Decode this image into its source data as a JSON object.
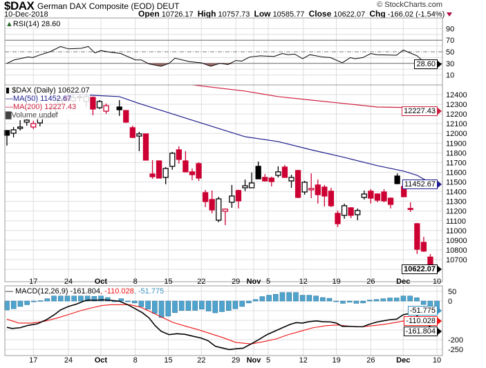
{
  "header": {
    "symbol": "$DAX",
    "name": "German DAX Composite (EOD)",
    "exchange": "DEUT",
    "date": "10-Dec-2018",
    "open_label": "Open",
    "open": "10726.17",
    "high_label": "High",
    "high": "10757.73",
    "low_label": "Low",
    "low": "10585.77",
    "close_label": "Close",
    "close": "10622.07",
    "chg_label": "Chg",
    "chg": "-166.02 (-1.54%)",
    "copyright": "© StockCharts.com"
  },
  "colors": {
    "up": "#000000",
    "down": "#cc0033",
    "ma50": "#1c1c8c",
    "ma200": "#cc1f3f",
    "macd": "#000000",
    "signal": "#ee1111",
    "histogram": "#4fa3cc",
    "grid": "#dddddd"
  },
  "chart_data": {
    "type": "candlestick",
    "x_labels": [
      {
        "slot": 4,
        "label": "17",
        "bold": false
      },
      {
        "slot": 9.3,
        "label": "24",
        "bold": false
      },
      {
        "slot": 14.2,
        "label": "Oct",
        "bold": true
      },
      {
        "slot": 19.4,
        "label": "8",
        "bold": false
      },
      {
        "slot": 24.4,
        "label": "15",
        "bold": false
      },
      {
        "slot": 29.4,
        "label": "22",
        "bold": false
      },
      {
        "slot": 34.6,
        "label": "29",
        "bold": false
      },
      {
        "slot": 37.3,
        "label": "Nov",
        "bold": true
      },
      {
        "slot": 39.5,
        "label": "5",
        "bold": false
      },
      {
        "slot": 44.8,
        "label": "12",
        "bold": false
      },
      {
        "slot": 49.8,
        "label": "19",
        "bold": false
      },
      {
        "slot": 55,
        "label": "26",
        "bold": false
      },
      {
        "slot": 59.9,
        "label": "Dec",
        "bold": true
      },
      {
        "slot": 65,
        "label": "10",
        "bold": false
      }
    ],
    "rsi": {
      "label": "RSI(14) 28.60",
      "last": "28.60",
      "ylim": [
        0,
        100
      ],
      "ticks": [
        90,
        70,
        50,
        30,
        10
      ],
      "overbought": 70,
      "oversold": 30,
      "midline": 50,
      "points": [
        [
          0,
          30
        ],
        [
          1.1,
          36
        ],
        [
          3.2,
          41
        ],
        [
          3.9,
          40
        ],
        [
          5.1,
          45
        ],
        [
          6.5,
          50
        ],
        [
          8.1,
          59
        ],
        [
          9.3,
          55
        ],
        [
          11.2,
          56
        ],
        [
          12.3,
          59
        ],
        [
          13.3,
          48
        ],
        [
          14.2,
          52
        ],
        [
          15.8,
          49
        ],
        [
          17.2,
          47
        ],
        [
          19.4,
          36
        ],
        [
          20.3,
          36
        ],
        [
          21.5,
          29
        ],
        [
          23.3,
          25
        ],
        [
          24.5,
          30
        ],
        [
          25.4,
          39
        ],
        [
          27.6,
          33
        ],
        [
          29.4,
          31
        ],
        [
          30.8,
          25
        ],
        [
          32.2,
          30
        ],
        [
          33.4,
          28
        ],
        [
          34.6,
          35
        ],
        [
          35.5,
          34
        ],
        [
          36.7,
          41
        ],
        [
          38.3,
          43
        ],
        [
          40.4,
          42
        ],
        [
          41.6,
          47
        ],
        [
          42.5,
          45
        ],
        [
          43.5,
          46
        ],
        [
          44.7,
          38
        ],
        [
          45.8,
          45
        ],
        [
          47.7,
          41
        ],
        [
          48.9,
          40
        ],
        [
          50.7,
          31
        ],
        [
          51.9,
          40
        ],
        [
          52.6,
          38
        ],
        [
          53.8,
          40
        ],
        [
          55,
          47
        ],
        [
          55.9,
          45
        ],
        [
          58.9,
          44
        ],
        [
          59.9,
          53
        ],
        [
          62,
          43
        ],
        [
          63.1,
          32
        ],
        [
          64.1,
          31
        ],
        [
          65,
          28.6
        ]
      ]
    },
    "price": {
      "title": "$DAX (Daily) 10622.07",
      "ma50_label": "MA(50) 11452.67",
      "ma200_label": "MA(200) 12227.43",
      "volume_label": "Volume undef",
      "last_close": "10622.07",
      "ma50_last": "11452.67",
      "ma200_last": "12227.43",
      "ylim": [
        10480,
        12500
      ],
      "ticks": [
        12400,
        12300,
        12200,
        12100,
        12000,
        11900,
        11800,
        11700,
        11600,
        11500,
        11400,
        11300,
        11200,
        11100,
        11000,
        10900,
        10800,
        10700
      ],
      "candles_ohlc": [
        [
          12030,
          12030,
          11874,
          11981
        ],
        [
          12002,
          12066,
          11959,
          12037
        ],
        [
          12052,
          12137,
          12030,
          12066
        ],
        [
          12116,
          12151,
          12080,
          12137
        ],
        [
          12066,
          12130,
          12044,
          12101
        ],
        [
          12108,
          12180,
          12073,
          12165
        ],
        [
          12165,
          12180,
          12160,
          12172
        ],
        [
          12172,
          12280,
          12160,
          12270
        ],
        [
          12300,
          12370,
          12290,
          12360
        ],
        [
          12379,
          12385,
          12330,
          12336
        ],
        [
          12336,
          12400,
          12322,
          12371
        ],
        [
          12379,
          12400,
          12329,
          12373
        ],
        [
          12329,
          12414,
          12272,
          12379
        ],
        [
          12371,
          12380,
          12187,
          12251
        ],
        [
          12265,
          12343,
          12251,
          12329
        ],
        [
          12229,
          12308,
          12201,
          12286
        ],
        null,
        [
          12272,
          12343,
          12180,
          12244
        ],
        [
          12236,
          12240,
          12108,
          12116
        ],
        [
          12059,
          12080,
          11952,
          11959
        ],
        [
          11973,
          12016,
          11817,
          11995
        ],
        [
          11995,
          11995,
          11725,
          11725
        ],
        [
          11582,
          11725,
          11532,
          11554
        ],
        [
          11717,
          11720,
          11540,
          11540
        ],
        [
          11547,
          11653,
          11476,
          11639
        ],
        [
          11661,
          11810,
          11625,
          11796
        ],
        [
          11831,
          11867,
          11689,
          11732
        ],
        [
          11717,
          11817,
          11604,
          11604
        ],
        [
          11604,
          11639,
          11518,
          11575
        ],
        [
          11689,
          11703,
          11511,
          11540
        ],
        [
          11390,
          11419,
          11241,
          11298
        ],
        [
          11319,
          11412,
          11177,
          11212
        ],
        [
          11106,
          11348,
          11085,
          11326
        ],
        [
          11198,
          11227,
          11056,
          11220
        ],
        [
          11291,
          11469,
          11234,
          11355
        ],
        [
          11412,
          11419,
          11227,
          11305
        ],
        [
          11440,
          11525,
          11405,
          11461
        ],
        [
          11440,
          11597,
          11440,
          11490
        ],
        [
          11661,
          11710,
          11532,
          11532
        ],
        [
          11547,
          11582,
          11504,
          11511
        ],
        [
          11540,
          11554,
          11454,
          11504
        ],
        [
          11568,
          11661,
          11547,
          11604
        ],
        [
          11653,
          11675,
          11547,
          11547
        ],
        [
          11511,
          11575,
          11440,
          11547
        ],
        [
          11618,
          11625,
          11333,
          11341
        ],
        [
          11397,
          11511,
          11369,
          11497
        ],
        [
          11419,
          11589,
          11333,
          11433
        ],
        [
          11469,
          11525,
          11277,
          11369
        ],
        [
          11447,
          11469,
          11248,
          11355
        ],
        [
          11405,
          11440,
          11241,
          11255
        ],
        [
          11177,
          11206,
          11035,
          11070
        ],
        [
          11156,
          11277,
          11120,
          11255
        ],
        [
          11234,
          11241,
          11127,
          11156
        ],
        [
          11163,
          11227,
          11106,
          11206
        ],
        [
          11341,
          11412,
          11319,
          11376
        ],
        [
          11405,
          11426,
          11277,
          11333
        ],
        [
          11376,
          11383,
          11291,
          11312
        ],
        [
          11397,
          11426,
          11291,
          11305
        ],
        [
          11333,
          11341,
          11227,
          11269
        ],
        [
          11561,
          11589,
          11476,
          11483
        ],
        [
          11454,
          11469,
          11348,
          11348
        ],
        [
          11227,
          11290,
          11191,
          11220
        ],
        [
          11070,
          11078,
          10758,
          10807
        ],
        [
          10878,
          10935,
          10779,
          10788
        ],
        [
          10726.17,
          10757.73,
          10585.77,
          10622.07
        ]
      ],
      "ma50": [
        [
          9,
          12407
        ],
        [
          17,
          12379
        ],
        [
          20,
          12308
        ],
        [
          25,
          12201
        ],
        [
          30,
          12094
        ],
        [
          36,
          11966
        ],
        [
          41,
          11916
        ],
        [
          46,
          11831
        ],
        [
          51,
          11753
        ],
        [
          56,
          11668
        ],
        [
          60,
          11611
        ],
        [
          62,
          11568
        ],
        [
          65,
          11452.67
        ]
      ],
      "ma200": [
        [
          28,
          12500
        ],
        [
          36,
          12436
        ],
        [
          41,
          12379
        ],
        [
          46,
          12343
        ],
        [
          51,
          12308
        ],
        [
          56,
          12272
        ],
        [
          62,
          12265
        ],
        [
          65,
          12227.43
        ]
      ]
    },
    "macd": {
      "label_prefix": "MACD(12,26,9)",
      "macd_value": "-161.804",
      "signal_value": "-110.028",
      "hist_value": "-51.775",
      "ylim": [
        -270,
        80
      ],
      "ticks": [
        50,
        0,
        -200,
        -250
      ],
      "grid": [
        50,
        0,
        -50,
        -100,
        -150,
        -200,
        -250
      ],
      "macd_line": [
        [
          0,
          -136
        ],
        [
          0.8,
          -142
        ],
        [
          2,
          -138
        ],
        [
          3.2,
          -126
        ],
        [
          4.6,
          -118
        ],
        [
          6,
          -96
        ],
        [
          7.2,
          -70
        ],
        [
          8.1,
          -46
        ],
        [
          9.3,
          -28
        ],
        [
          10.5,
          -16
        ],
        [
          11.6,
          -1
        ],
        [
          12.3,
          5
        ],
        [
          13.3,
          4
        ],
        [
          14.4,
          6
        ],
        [
          15.6,
          4
        ],
        [
          17,
          -1
        ],
        [
          18.2,
          -18
        ],
        [
          19.4,
          -40
        ],
        [
          20.5,
          -61
        ],
        [
          21.5,
          -88
        ],
        [
          22.4,
          -127
        ],
        [
          23.3,
          -156
        ],
        [
          24.5,
          -174
        ],
        [
          25.7,
          -169
        ],
        [
          26.9,
          -172
        ],
        [
          28,
          -181
        ],
        [
          29.4,
          -192
        ],
        [
          30.4,
          -205
        ],
        [
          31.5,
          -234
        ],
        [
          32.7,
          -244
        ],
        [
          33.6,
          -251
        ],
        [
          34.6,
          -247
        ],
        [
          35.7,
          -244
        ],
        [
          36.9,
          -222
        ],
        [
          38.1,
          -199
        ],
        [
          39.3,
          -174
        ],
        [
          40.4,
          -157
        ],
        [
          41.6,
          -139
        ],
        [
          42.8,
          -121
        ],
        [
          43.7,
          -112
        ],
        [
          44.7,
          -114
        ],
        [
          45.6,
          -107
        ],
        [
          46.8,
          -103
        ],
        [
          47.7,
          -107
        ],
        [
          48.9,
          -108
        ],
        [
          49.8,
          -114
        ],
        [
          50.7,
          -131
        ],
        [
          51.9,
          -131
        ],
        [
          52.9,
          -133
        ],
        [
          53.8,
          -133
        ],
        [
          54.7,
          -121
        ],
        [
          55.9,
          -109
        ],
        [
          57.1,
          -101
        ],
        [
          58,
          -96
        ],
        [
          58.9,
          -94
        ],
        [
          59.9,
          -71
        ],
        [
          60.8,
          -65
        ],
        [
          61.8,
          -71
        ],
        [
          62.9,
          -103
        ],
        [
          64.1,
          -136
        ],
        [
          65,
          -161.804
        ]
      ],
      "signal_line": [
        [
          0,
          -94
        ],
        [
          1.8,
          -114
        ],
        [
          3.7,
          -114
        ],
        [
          5.5,
          -106
        ],
        [
          7.4,
          -90
        ],
        [
          9.3,
          -70
        ],
        [
          11.2,
          -49
        ],
        [
          12.6,
          -37
        ],
        [
          14.4,
          -23
        ],
        [
          15.8,
          -19
        ],
        [
          18.6,
          -19
        ],
        [
          20.1,
          -31
        ],
        [
          21.5,
          -52
        ],
        [
          23.3,
          -82
        ],
        [
          25.2,
          -112
        ],
        [
          27.1,
          -131
        ],
        [
          28.9,
          -148
        ],
        [
          30.8,
          -169
        ],
        [
          32.7,
          -190
        ],
        [
          34.6,
          -214
        ],
        [
          36.9,
          -222
        ],
        [
          38.8,
          -210
        ],
        [
          40.7,
          -196
        ],
        [
          42.5,
          -174
        ],
        [
          44.4,
          -156
        ],
        [
          46.3,
          -138
        ],
        [
          48.2,
          -128
        ],
        [
          50,
          -124
        ],
        [
          51.9,
          -131
        ],
        [
          53.8,
          -133
        ],
        [
          55.7,
          -126
        ],
        [
          57.5,
          -118
        ],
        [
          59.4,
          -107
        ],
        [
          61.3,
          -94
        ],
        [
          62.2,
          -88
        ],
        [
          63.6,
          -96
        ],
        [
          65,
          -110.028
        ]
      ],
      "histogram": [
        -46,
        -40,
        -28,
        -19,
        -4,
        2,
        12,
        26,
        26,
        26,
        26,
        26,
        26,
        24,
        26,
        18,
        0,
        12,
        0,
        -10,
        -30,
        -42,
        -64,
        -85,
        -78,
        -60,
        -49,
        -49,
        -48,
        -42,
        -52,
        -61,
        -55,
        -49,
        -40,
        -28,
        -10,
        8,
        23,
        30,
        35,
        44,
        44,
        44,
        30,
        30,
        26,
        18,
        14,
        0,
        -12,
        -6,
        -12,
        -10,
        5,
        8,
        12,
        16,
        16,
        26,
        26,
        17,
        -18,
        -35,
        -51.775
      ]
    }
  }
}
